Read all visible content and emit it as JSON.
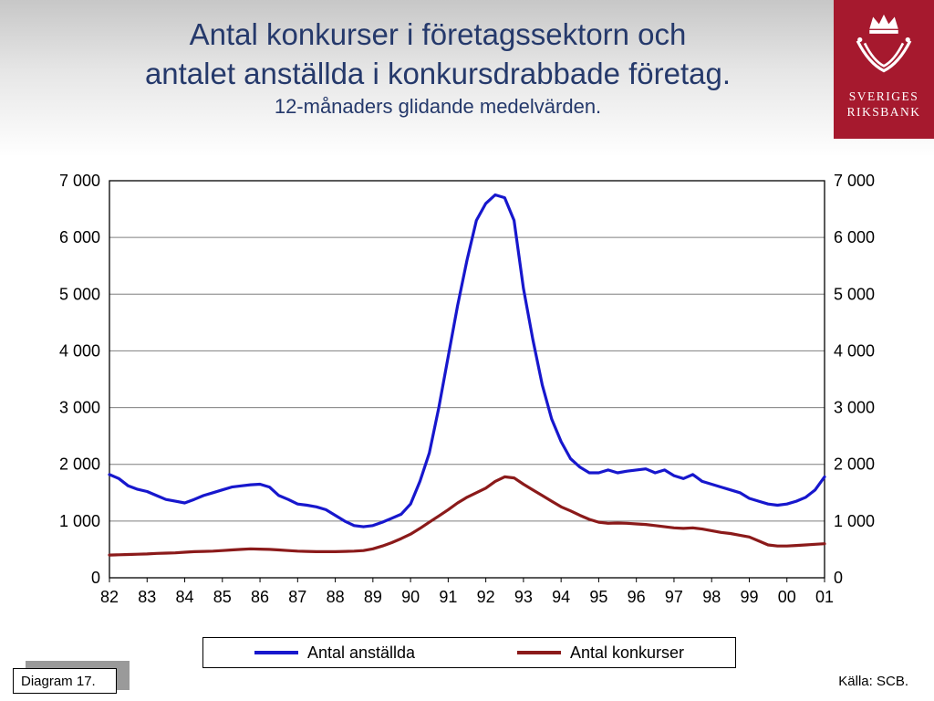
{
  "title": {
    "line1": "Antal konkurser i företagssektorn och",
    "line2": "antalet anställda i konkursdrabbade företag.",
    "subtitle": "12-månaders glidande medelvärden."
  },
  "logo": {
    "line1": "SVERIGES",
    "line2": "RIKSBANK"
  },
  "footer": {
    "diagram_label": "Diagram 17.",
    "source": "Källa: SCB."
  },
  "colors": {
    "title": "#25396B",
    "logo_bg": "#A6192E",
    "grid": "#7f7f7f",
    "axis": "#000000"
  },
  "chart_data": {
    "type": "line",
    "title": "",
    "xlabel": "",
    "ylabel": "",
    "x_start": 1982,
    "x_step": 0.25,
    "xlim": [
      1982,
      2001
    ],
    "ylim": [
      0,
      7000
    ],
    "grid_step": 1000,
    "grid": "horizontal",
    "legend_position": "bottom",
    "x_tick_labels": [
      "82",
      "83",
      "84",
      "85",
      "86",
      "87",
      "88",
      "89",
      "90",
      "91",
      "92",
      "93",
      "94",
      "95",
      "96",
      "97",
      "98",
      "99",
      "00",
      "01"
    ],
    "y_tick_labels": [
      "0",
      "1 000",
      "2 000",
      "3 000",
      "4 000",
      "5 000",
      "6 000",
      "7 000"
    ],
    "series": [
      {
        "name": "Antal anställda",
        "color": "#1717CD",
        "values": [
          1820,
          1750,
          1620,
          1560,
          1520,
          1450,
          1380,
          1350,
          1320,
          1380,
          1450,
          1500,
          1550,
          1600,
          1620,
          1640,
          1650,
          1600,
          1450,
          1380,
          1300,
          1280,
          1250,
          1200,
          1100,
          1000,
          920,
          900,
          920,
          980,
          1050,
          1120,
          1300,
          1700,
          2200,
          3000,
          3900,
          4800,
          5600,
          6300,
          6600,
          6750,
          6700,
          6300,
          5100,
          4200,
          3400,
          2800,
          2400,
          2100,
          1950,
          1850,
          1850,
          1900,
          1850,
          1880,
          1900,
          1920,
          1850,
          1900,
          1800,
          1750,
          1820,
          1700,
          1650,
          1600,
          1550,
          1500,
          1400,
          1350,
          1300,
          1280,
          1300,
          1350,
          1420,
          1550,
          1780
        ]
      },
      {
        "name": "Antal konkurser",
        "color": "#8B1A1A",
        "values": [
          400,
          405,
          410,
          415,
          420,
          430,
          435,
          440,
          450,
          460,
          465,
          470,
          480,
          490,
          500,
          510,
          505,
          500,
          490,
          480,
          470,
          465,
          460,
          460,
          460,
          465,
          470,
          480,
          510,
          560,
          620,
          690,
          770,
          870,
          980,
          1090,
          1200,
          1320,
          1420,
          1500,
          1580,
          1700,
          1780,
          1760,
          1650,
          1550,
          1450,
          1350,
          1250,
          1180,
          1100,
          1030,
          980,
          960,
          965,
          960,
          950,
          940,
          920,
          900,
          880,
          870,
          880,
          860,
          830,
          800,
          780,
          750,
          720,
          650,
          580,
          560,
          560,
          570,
          580,
          590,
          600
        ]
      }
    ]
  }
}
